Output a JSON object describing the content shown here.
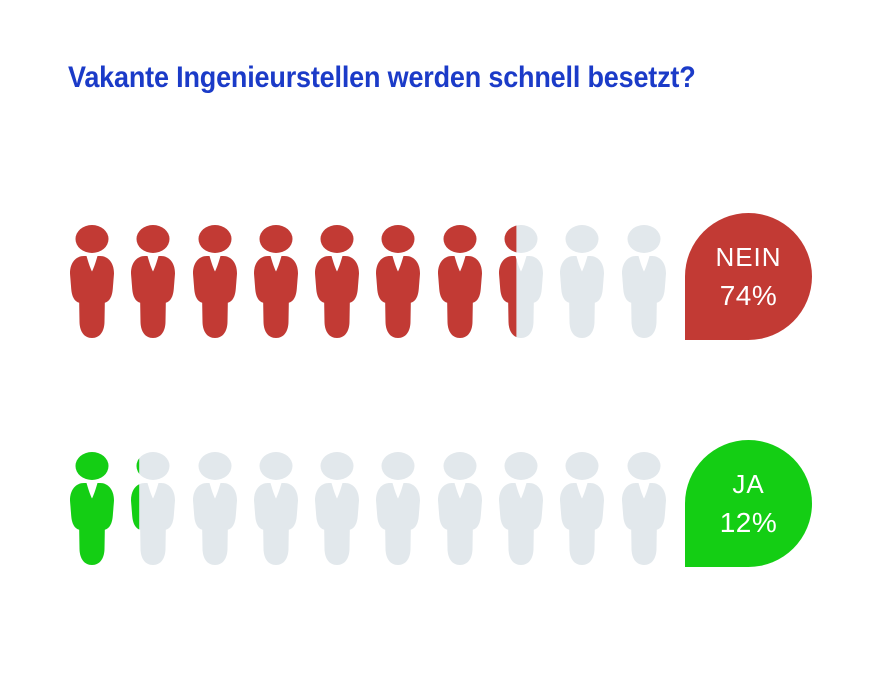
{
  "title": "Vakante Ingenieurstellen werden schnell besetzt?",
  "colors": {
    "title_blue": "#1B3BC8",
    "no_red": "#C23A34",
    "yes_green": "#14CE14",
    "empty_gray": "#E2E8EC",
    "badge_text": "#FFFFFF",
    "background": "#FFFFFF"
  },
  "chart_data": {
    "type": "pictogram",
    "title": "Vakante Ingenieurstellen werden schnell besetzt?",
    "icons_per_row": 10,
    "icon_unit_percent": 10,
    "icon": "person-icon",
    "empty_color": "#E2E8EC",
    "legend_position": "right-badges",
    "rows": [
      {
        "label": "NEIN",
        "value_percent": 74,
        "percent_label": "74%",
        "filled_icons": 7.4,
        "color": "#C23A34"
      },
      {
        "label": "JA",
        "value_percent": 12,
        "percent_label": "12%",
        "filled_icons": 1.2,
        "color": "#14CE14"
      }
    ]
  }
}
